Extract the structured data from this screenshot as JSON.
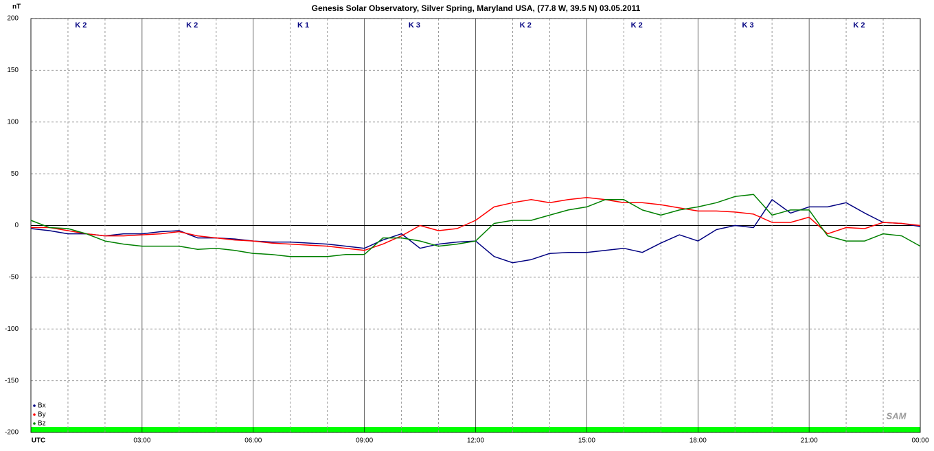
{
  "chart_data": {
    "type": "line",
    "title": "Genesis Solar Observatory, Silver Spring, Maryland USA, (77.8 W, 39.5 N)  03.05.2011",
    "y_label": "nT",
    "logo": "SAM",
    "k_indices": [
      "K 2",
      "K 2",
      "K 1",
      "K 3",
      "K 2",
      "K 2",
      "K 3",
      "K 2"
    ],
    "x": [
      0,
      0.5,
      1,
      1.5,
      2,
      2.5,
      3,
      3.5,
      4,
      4.5,
      5,
      5.5,
      6,
      6.5,
      7,
      7.5,
      8,
      8.5,
      9,
      9.5,
      10,
      10.5,
      11,
      11.5,
      12,
      12.5,
      13,
      13.5,
      14,
      14.5,
      15,
      15.5,
      16,
      16.5,
      17,
      17.5,
      18,
      18.5,
      19,
      19.5,
      20,
      20.5,
      21,
      21.5,
      22,
      22.5,
      23,
      23.5,
      24
    ],
    "series": [
      {
        "name": "Bx",
        "color": "#000080",
        "values": [
          -3,
          -5,
          -8,
          -8,
          -10,
          -8,
          -8,
          -6,
          -5,
          -12,
          -12,
          -13,
          -15,
          -16,
          -16,
          -17,
          -18,
          -20,
          -22,
          -14,
          -8,
          -22,
          -18,
          -16,
          -15,
          -30,
          -36,
          -33,
          -27,
          -26,
          -26,
          -24,
          -22,
          -26,
          -17,
          -9,
          -15,
          -4,
          0,
          -2,
          25,
          12,
          18,
          18,
          22,
          12,
          3,
          2,
          -1
        ]
      },
      {
        "name": "By",
        "color": "#ff0000",
        "values": [
          -2,
          -2,
          -5,
          -8,
          -10,
          -10,
          -9,
          -8,
          -6,
          -10,
          -12,
          -14,
          -15,
          -17,
          -18,
          -19,
          -20,
          -22,
          -24,
          -18,
          -10,
          0,
          -5,
          -3,
          5,
          18,
          22,
          25,
          22,
          25,
          27,
          25,
          22,
          22,
          20,
          17,
          14,
          14,
          13,
          11,
          3,
          3,
          8,
          -8,
          -2,
          -3,
          3,
          2,
          0
        ]
      },
      {
        "name": "Bz",
        "color": "#008000",
        "values": [
          5,
          -2,
          -3,
          -8,
          -15,
          -18,
          -20,
          -20,
          -20,
          -23,
          -22,
          -24,
          -27,
          -28,
          -30,
          -30,
          -30,
          -28,
          -28,
          -12,
          -12,
          -15,
          -20,
          -18,
          -15,
          2,
          5,
          5,
          10,
          15,
          18,
          25,
          25,
          15,
          10,
          15,
          18,
          22,
          28,
          30,
          10,
          15,
          15,
          -10,
          -15,
          -15,
          -8,
          -10,
          -20
        ]
      }
    ],
    "xlim": [
      0,
      24
    ],
    "xticks": [
      {
        "value": 0,
        "label": "UTC"
      },
      {
        "value": 3,
        "label": "03:00"
      },
      {
        "value": 6,
        "label": "06:00"
      },
      {
        "value": 9,
        "label": "09:00"
      },
      {
        "value": 12,
        "label": "12:00"
      },
      {
        "value": 15,
        "label": "15:00"
      },
      {
        "value": 18,
        "label": "18:00"
      },
      {
        "value": 21,
        "label": "21:00"
      },
      {
        "value": 24,
        "label": "00:00"
      }
    ],
    "xminorticks": [
      1,
      2,
      4,
      5,
      7,
      8,
      10,
      11,
      13,
      14,
      16,
      17,
      19,
      20,
      22,
      23
    ],
    "ylim": [
      -200,
      200
    ],
    "yticks": [
      200,
      150,
      100,
      50,
      0,
      -50,
      -100,
      -150,
      -200
    ],
    "grid": true
  }
}
